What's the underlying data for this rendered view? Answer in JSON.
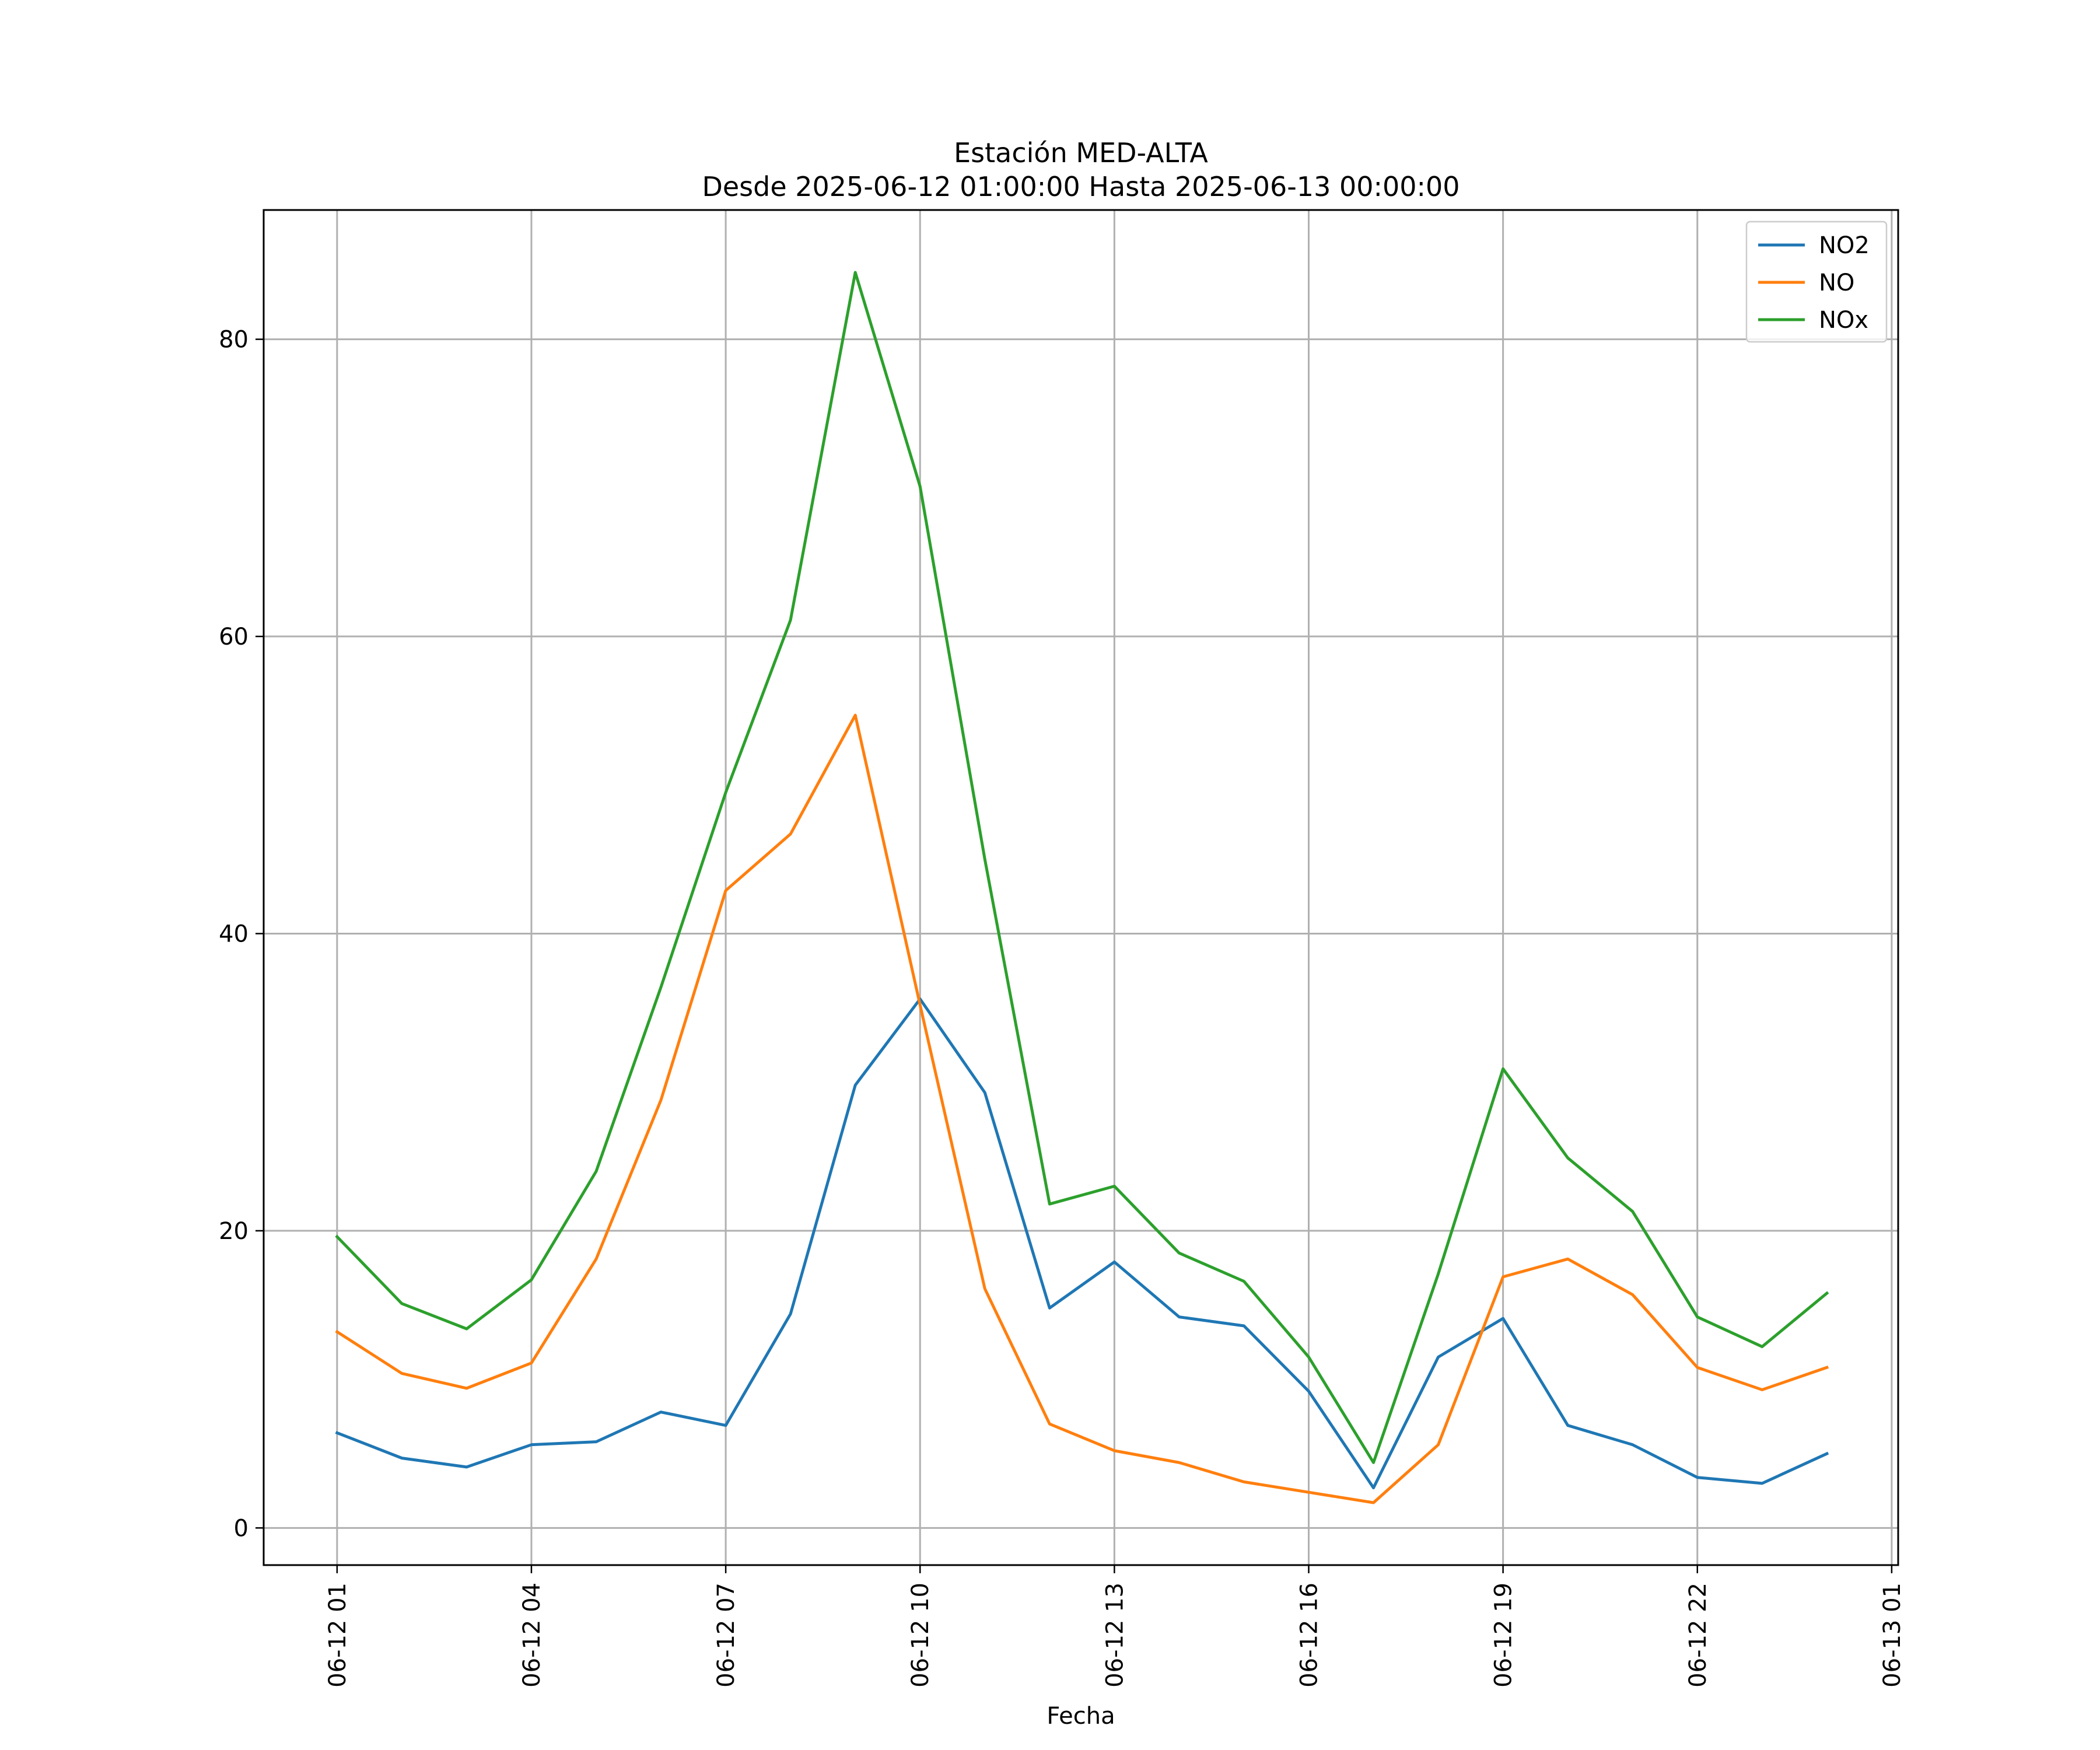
{
  "chart_data": {
    "type": "line",
    "title": "Estación MED-ALTA",
    "subtitle": "Desde 2025-06-12 01:00:00 Hasta 2025-06-13 00:00:00",
    "xlabel": "Fecha",
    "ylabel": "",
    "x": [
      "2025-06-12 01:00",
      "2025-06-12 02:00",
      "2025-06-12 03:00",
      "2025-06-12 04:00",
      "2025-06-12 05:00",
      "2025-06-12 06:00",
      "2025-06-12 07:00",
      "2025-06-12 08:00",
      "2025-06-12 09:00",
      "2025-06-12 10:00",
      "2025-06-12 11:00",
      "2025-06-12 12:00",
      "2025-06-12 13:00",
      "2025-06-12 14:00",
      "2025-06-12 15:00",
      "2025-06-12 16:00",
      "2025-06-12 17:00",
      "2025-06-12 18:00",
      "2025-06-12 19:00",
      "2025-06-12 20:00",
      "2025-06-12 21:00",
      "2025-06-12 22:00",
      "2025-06-12 23:00",
      "2025-06-13 00:00"
    ],
    "xlim": [
      "2025-06-11 23:52",
      "2025-06-13 01:06"
    ],
    "x_ticks": [
      "2025-06-12 01:00",
      "2025-06-12 04:00",
      "2025-06-12 07:00",
      "2025-06-12 10:00",
      "2025-06-12 13:00",
      "2025-06-12 16:00",
      "2025-06-12 19:00",
      "2025-06-12 22:00",
      "2025-06-13 01:00"
    ],
    "x_tick_labels": [
      "06-12 01",
      "06-12 04",
      "06-12 07",
      "06-12 10",
      "06-12 13",
      "06-12 16",
      "06-12 19",
      "06-12 22",
      "06-13 01"
    ],
    "ylim": [
      -2.5,
      88.7
    ],
    "y_ticks": [
      0,
      20,
      40,
      60,
      80
    ],
    "y_tick_labels": [
      "0",
      "20",
      "40",
      "60",
      "80"
    ],
    "grid": true,
    "legend_position": "top-right",
    "series": [
      {
        "name": "NO2",
        "color": "#1f77b4",
        "values": [
          6.4,
          4.7,
          4.1,
          5.6,
          5.8,
          7.8,
          6.9,
          14.4,
          29.8,
          35.6,
          29.3,
          14.8,
          17.9,
          14.2,
          13.6,
          9.2,
          2.7,
          11.5,
          14.1,
          6.9,
          5.6,
          3.4,
          3.0,
          5.0
        ]
      },
      {
        "name": "NO",
        "color": "#ff7f0e",
        "values": [
          13.2,
          10.4,
          9.4,
          11.1,
          18.1,
          28.8,
          42.9,
          46.7,
          54.7,
          35.2,
          16.1,
          7.0,
          5.2,
          4.4,
          3.1,
          2.4,
          1.7,
          5.6,
          16.9,
          18.1,
          15.7,
          10.8,
          9.3,
          10.8
        ]
      },
      {
        "name": "NOx",
        "color": "#2ca02c",
        "values": [
          19.6,
          15.1,
          13.4,
          16.7,
          24.0,
          36.4,
          49.5,
          61.1,
          84.5,
          70.1,
          45.0,
          21.8,
          23.0,
          18.5,
          16.6,
          11.5,
          4.4,
          17.1,
          30.9,
          24.9,
          21.3,
          14.2,
          12.2,
          15.8
        ]
      }
    ]
  }
}
